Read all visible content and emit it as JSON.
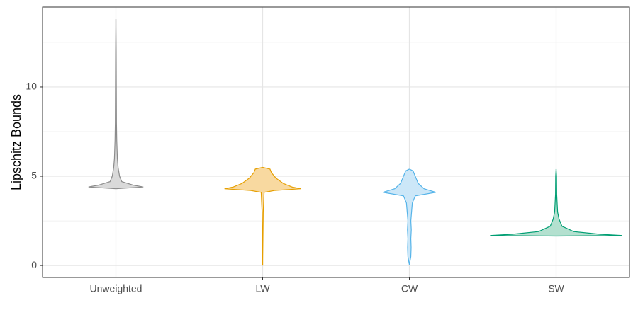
{
  "chart_data": {
    "type": "violin",
    "ylabel": "Lipschitz Bounds",
    "categories": [
      "Unweighted",
      "LW",
      "CW",
      "SW"
    ],
    "ylim": [
      -0.67,
      14.48
    ],
    "yticks": [
      0,
      5,
      10
    ],
    "yminor": [
      2.5,
      7.5,
      12.5
    ],
    "grid": true,
    "series": [
      {
        "color": "#8c8c8c",
        "fill": "#d9d9d9",
        "y": [
          4.3,
          4.4,
          4.5,
          4.7,
          5,
          5.5,
          6,
          7,
          8,
          10,
          12,
          13.8
        ],
        "widths": [
          0,
          18.7,
          12,
          4,
          2.5,
          1.5,
          1,
          0.6,
          0.4,
          0.3,
          0.2,
          0
        ]
      },
      {
        "color": "#e69f00",
        "fill": "#f8d9a0",
        "y": [
          0,
          3,
          4.1,
          4.2,
          4.3,
          4.4,
          4.6,
          4.9,
          5.2,
          5.4,
          5.5
        ],
        "widths": [
          0,
          0.4,
          1,
          8,
          26,
          20,
          14,
          9,
          6,
          5,
          0
        ]
      },
      {
        "color": "#56b4e9",
        "fill": "#cce7f8",
        "y": [
          0.05,
          0.5,
          1,
          1.5,
          2,
          2.5,
          3,
          3.5,
          3.9,
          4.1,
          4.3,
          4.6,
          5,
          5.3,
          5.4
        ],
        "widths": [
          0,
          1,
          1.2,
          1,
          1.3,
          1,
          1.5,
          2,
          4,
          18,
          10,
          6,
          4,
          2.5,
          0
        ]
      },
      {
        "color": "#009e73",
        "fill": "#b3e0cf",
        "y": [
          1.65,
          1.68,
          1.75,
          1.9,
          2.2,
          2.6,
          3,
          4,
          5,
          5.4
        ],
        "widths": [
          0,
          45,
          30,
          12,
          4,
          2,
          1,
          0.4,
          0.3,
          0
        ]
      }
    ]
  }
}
